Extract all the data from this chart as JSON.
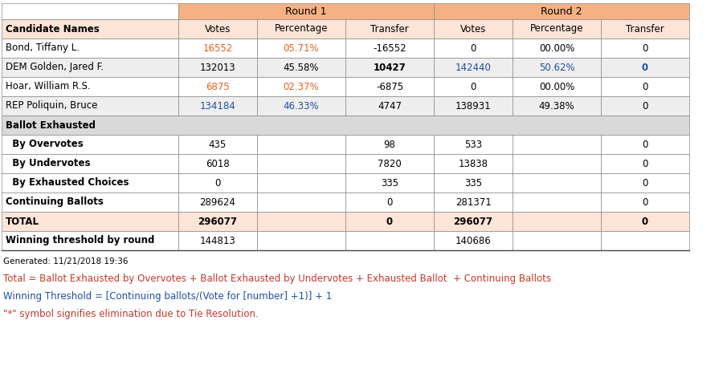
{
  "header_row": [
    "Candidate Names",
    "Votes",
    "Percentage",
    "Transfer",
    "Votes",
    "Percentage",
    "Transfer"
  ],
  "rows": [
    {
      "label": "Bond, Tiffany L.",
      "r1_votes": "16552",
      "r1_pct": "05.71%",
      "r1_transfer": "-16552",
      "r2_votes": "0",
      "r2_pct": "00.00%",
      "r2_transfer": "0",
      "r1_votes_color": "#e8601c",
      "r1_pct_color": "#e8601c",
      "r1_transfer_color": "#000000",
      "r2_votes_color": "#000000",
      "r2_pct_color": "#000000",
      "r2_transfer_color": "#000000",
      "label_color": "#000000",
      "row_bg": "#ffffff",
      "r1_transfer_bold": false,
      "r2_transfer_bold": false
    },
    {
      "label": "DEM Golden, Jared F.",
      "r1_votes": "132013",
      "r1_pct": "45.58%",
      "r1_transfer": "10427",
      "r2_votes": "142440",
      "r2_pct": "50.62%",
      "r2_transfer": "0",
      "r1_votes_color": "#000000",
      "r1_pct_color": "#000000",
      "r1_transfer_color": "#000000",
      "r2_votes_color": "#1f4e9e",
      "r2_pct_color": "#1f4e9e",
      "r2_transfer_color": "#1f4e9e",
      "label_color": "#000000",
      "row_bg": "#eeeeee",
      "r1_transfer_bold": true,
      "r2_transfer_bold": true
    },
    {
      "label": "Hoar, William R.S.",
      "r1_votes": "6875",
      "r1_pct": "02.37%",
      "r1_transfer": "-6875",
      "r2_votes": "0",
      "r2_pct": "00.00%",
      "r2_transfer": "0",
      "r1_votes_color": "#e8601c",
      "r1_pct_color": "#e8601c",
      "r1_transfer_color": "#000000",
      "r2_votes_color": "#000000",
      "r2_pct_color": "#000000",
      "r2_transfer_color": "#000000",
      "label_color": "#000000",
      "row_bg": "#ffffff",
      "r1_transfer_bold": false,
      "r2_transfer_bold": false
    },
    {
      "label": "REP Poliquin, Bruce",
      "r1_votes": "134184",
      "r1_pct": "46.33%",
      "r1_transfer": "4747",
      "r2_votes": "138931",
      "r2_pct": "49.38%",
      "r2_transfer": "0",
      "r1_votes_color": "#1f4e9e",
      "r1_pct_color": "#1f4e9e",
      "r1_transfer_color": "#000000",
      "r2_votes_color": "#000000",
      "r2_pct_color": "#000000",
      "r2_transfer_color": "#000000",
      "label_color": "#000000",
      "row_bg": "#eeeeee",
      "r1_transfer_bold": false,
      "r2_transfer_bold": false
    }
  ],
  "ballot_exhausted_label": "Ballot Exhausted",
  "ballot_exhausted_bg": "#d9d9d9",
  "sub_rows": [
    {
      "label": "  By Overvotes",
      "r1_votes": "435",
      "r1_transfer": "98",
      "r2_votes": "533",
      "r2_transfer": "0"
    },
    {
      "label": "  By Undervotes",
      "r1_votes": "6018",
      "r1_transfer": "7820",
      "r2_votes": "13838",
      "r2_transfer": "0"
    },
    {
      "label": "  By Exhausted Choices",
      "r1_votes": "0",
      "r1_transfer": "335",
      "r2_votes": "335",
      "r2_transfer": "0"
    }
  ],
  "continuing_row": {
    "label": "Continuing Ballots",
    "r1_votes": "289624",
    "r1_transfer": "0",
    "r2_votes": "281371",
    "r2_transfer": "0"
  },
  "total_row": {
    "label": "TOTAL",
    "r1_votes": "296077",
    "r1_transfer": "0",
    "r2_votes": "296077",
    "r2_transfer": "0"
  },
  "winning_row": {
    "label": "Winning threshold by round",
    "r1_votes": "144813",
    "r2_votes": "140686"
  },
  "generated_text": "Generated: 11/21/2018 19:36",
  "footnotes": [
    {
      "text": "Total = Ballot Exhausted by Overvotes + Ballot Exhausted by Undervotes + Exhausted Ballot  + Continuing Ballots",
      "color": "#c0392b"
    },
    {
      "text": "Winning Threshold = [Continuing ballots/(Vote for [number] +1)] + 1",
      "color": "#1f4e9e"
    },
    {
      "text": "\"*\" symbol signifies elimination due to Tie Resolution.",
      "color": "#c0392b"
    }
  ],
  "orange_header": "#f4b183",
  "col_header_bg": "#fce4d6",
  "total_bg": "#fce4d6",
  "blue_text": "#1f4e9e",
  "red_text": "#e8601c"
}
